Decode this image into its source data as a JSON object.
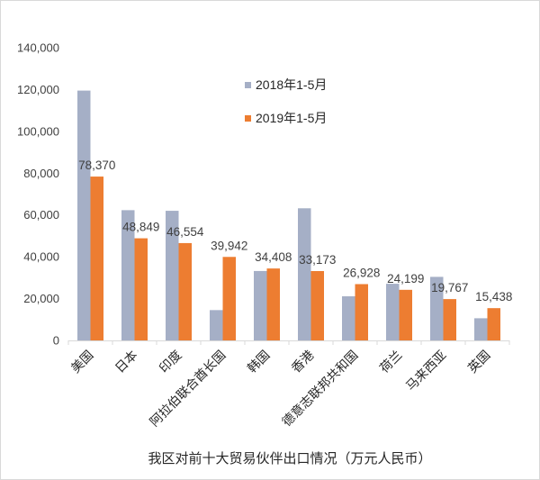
{
  "chart_data": {
    "type": "bar",
    "title": "我区对前十大贸易伙伴出口情况（万元人民币）",
    "categories": [
      "美国",
      "日本",
      "印度",
      "阿拉伯联合酋长国",
      "韩国",
      "香港",
      "德意志联邦共和国",
      "荷兰",
      "马来西亚",
      "英国"
    ],
    "series": [
      {
        "name": "2018年1-5月",
        "color": "#a5afc6",
        "values": [
          119500,
          62300,
          62000,
          14500,
          33200,
          63200,
          21100,
          27100,
          30400,
          10600
        ],
        "labels": []
      },
      {
        "name": "2019年1-5月",
        "color": "#ed7d31",
        "values": [
          78370,
          48849,
          46554,
          39942,
          34408,
          33173,
          26928,
          24199,
          19767,
          15438
        ],
        "labels": [
          "78,370",
          "48,849",
          "46,554",
          "39,942",
          "34,408",
          "33,173",
          "26,928",
          "24,199",
          "19,767",
          "15,438"
        ]
      }
    ],
    "ylim": [
      0,
      140000
    ],
    "yticks": [
      0,
      20000,
      40000,
      60000,
      80000,
      100000,
      120000,
      140000
    ],
    "ytick_labels": [
      "0",
      "20,000",
      "40,000",
      "60,000",
      "80,000",
      "100,000",
      "120,000",
      "140,000"
    ],
    "grid": false,
    "legend_position": "top-center"
  }
}
